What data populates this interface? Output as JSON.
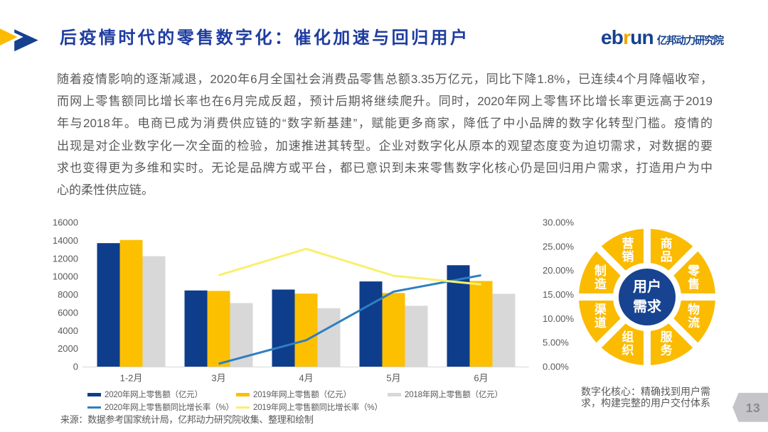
{
  "slide": {
    "title": "后疫情时代的零售数字化：催化加速与回归用户",
    "page_number": "13"
  },
  "logo": {
    "latin_prefix": "eb",
    "latin_accent": "r",
    "latin_suffix": "un",
    "cjk": "亿邦动力研究院"
  },
  "paragraph": {
    "lines": [
      "随着疫情影响的逐渐减退，2020年6月全国社会消费品零售总额3.35万亿元，同比下降1.8%，已连续4个月降幅收窄，",
      "而网上零售额同比增长率也在6月完成反超，预计后期将继续爬升。同时，2020年网上零售环比增长率更远高于2019",
      "年与2018年。电商已成为消费供应链的“数字新基建”，赋能更多商家，降低了中小品牌的数字化转型门槛。疫情的",
      "出现是对企业数字化一次全面的检验，加速推进其转型。企业对数字化从原本的观望态度变为迫切需求，对数据的要",
      "求也变得更为多维和实时。无论是品牌方或平台，都已意识到未来零售数字化核心仍是回归用户需求，打造用户为中",
      "心的柔性供应链。"
    ]
  },
  "chart_data": {
    "type": "combo-bar-line",
    "categories": [
      "1-2月",
      "3月",
      "4月",
      "5月",
      "6月"
    ],
    "bar_series": [
      {
        "name": "2020年网上零售额（亿元）",
        "color": "#0E3D8C",
        "values": [
          13700,
          8450,
          8550,
          9450,
          11250
        ]
      },
      {
        "name": "2019年网上零售额（亿元）",
        "color": "#FCC000",
        "values": [
          14050,
          8400,
          8100,
          8170,
          9500
        ]
      },
      {
        "name": "2018年网上零售额（亿元）",
        "color": "#D8D8D8",
        "values": [
          12250,
          7050,
          6480,
          6750,
          8080
        ]
      }
    ],
    "line_series": [
      {
        "name": "2020年网上零售额同比增长率（%）",
        "color": "#2E7FC2",
        "values": [
          null,
          0.6,
          5.5,
          15.6,
          19.0
        ]
      },
      {
        "name": "2019年网上零售额同比增长率（%）",
        "color": "#F8F06E",
        "values": [
          null,
          19.0,
          24.5,
          18.9,
          17.1
        ]
      }
    ],
    "y_left_axis": {
      "min": 0,
      "max": 16000,
      "step": 2000
    },
    "y_right_axis": {
      "min": 0,
      "max": 30,
      "step": 5,
      "suffix": "%",
      "decimals": 2
    },
    "grid": false,
    "legend_position": "bottom"
  },
  "chart_note": "来源：数据参考国家统计局，亿邦动力研究院收集、整理和绘制",
  "wheel": {
    "center_lines": [
      "用户",
      "需求"
    ],
    "segments": [
      "商品",
      "零售",
      "物流",
      "服务",
      "组织",
      "渠道",
      "制造",
      "营销"
    ],
    "caption_lines": [
      "数字化核心：精确找到用户需",
      "求，构建完整的用户交付体系"
    ],
    "ring_color": "#FBBB00",
    "center_color": "#174390",
    "label_color": "#FFFFFF"
  },
  "colors": {
    "title": "#1E3CA0",
    "logo_navy": "#15418F",
    "logo_accent": "#F0A500",
    "arrow_yellow": "#FBBB00",
    "arrow_blue": "#15418F",
    "axis_text": "#595959",
    "axis_line": "#D9D9D9",
    "page_tab_bg": "#C5C4C8",
    "page_tab_text": "#8A8A8E"
  }
}
